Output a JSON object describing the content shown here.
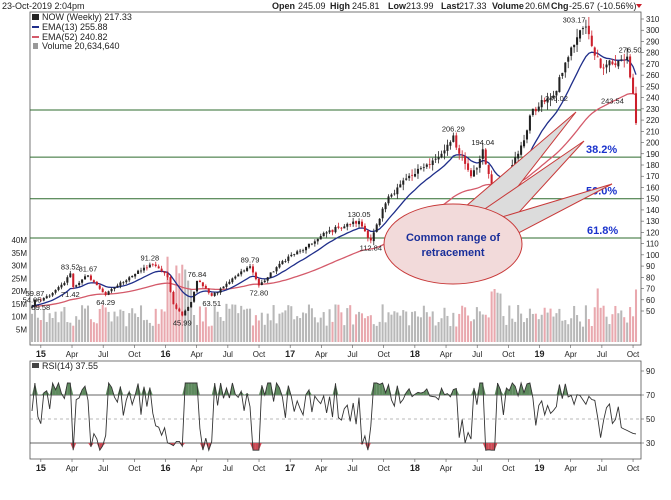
{
  "header": {
    "datetime": "23-Oct-2019 2:04pm",
    "open_label": "Open",
    "open": "245.09",
    "high_label": "High",
    "high": "245.81",
    "low_label": "Low",
    "low": "213.99",
    "last_label": "Last",
    "last": "217.33",
    "volume_label": "Volume",
    "volume": "20.6M",
    "chg_label": "Chg",
    "chg": "-25.67 (-10.56%)"
  },
  "legend": {
    "symbol": "NOW (Weekly) 217.33",
    "ema13": "EMA(13) 255.88",
    "ema52": "EMA(52) 240.82",
    "volume": "Volume 20,634,640"
  },
  "rsi_legend": "RSI(14) 37.55",
  "colors": {
    "up": "#222222",
    "down": "#cc1f2b",
    "ema13": "#1f2e8a",
    "ema52": "#d45a6a",
    "fib_line": "#2e6b2e",
    "fib_text": "#1a33cc",
    "bubble": "#f2dada",
    "bubble_border": "#c83a3a",
    "ann_text": "#1a2f9a",
    "rsi_fill": "#5e8a5e"
  },
  "annotation": {
    "line1": "Common range of",
    "line2": "retracement"
  },
  "chart_data": {
    "type": "candlestick",
    "title": "NOW (Weekly)",
    "x_labels": [
      "15",
      "Apr",
      "Jul",
      "Oct",
      "16",
      "Apr",
      "Jul",
      "Oct",
      "17",
      "Apr",
      "Jul",
      "Oct",
      "18",
      "Apr",
      "Jul",
      "Oct",
      "19",
      "Apr",
      "Jul",
      "Oct"
    ],
    "x_labels_bold": [
      "15",
      "16",
      "17",
      "18",
      "19"
    ],
    "price_ylim": [
      40,
      310
    ],
    "price_ticks": [
      310,
      300,
      290,
      280,
      270,
      260,
      250,
      240,
      230,
      220,
      210,
      200,
      190,
      180,
      170,
      160,
      150,
      140,
      130,
      120,
      110,
      100,
      90,
      80,
      70,
      60,
      50
    ],
    "volume_ylim": [
      0,
      40
    ],
    "volume_ticks": [
      "40M",
      "35M",
      "30M",
      "25M",
      "20M",
      "15M",
      "10M",
      "5M"
    ],
    "rsi_ylim": [
      20,
      95
    ],
    "rsi_ticks": [
      90,
      70,
      50,
      30
    ],
    "rsi_levels": [
      70,
      30
    ],
    "fibonacci": [
      {
        "label": "38.2%",
        "price": 187
      },
      {
        "label": "50.0%",
        "price": 150
      },
      {
        "label": "61.8%",
        "price": 115
      }
    ],
    "top_line_price": 229,
    "price_labels": [
      {
        "text": "54.05",
        "t": 0.0,
        "value": 54.05
      },
      {
        "text": "59.87",
        "t": 1.0,
        "value": 59.87
      },
      {
        "text": "59.58",
        "t": 3.0,
        "value": 59.58
      },
      {
        "text": "83.52",
        "t": 13.0,
        "value": 83.52
      },
      {
        "text": "71.42",
        "t": 13.0,
        "value": 71.42
      },
      {
        "text": "81.67",
        "t": 19.0,
        "value": 81.67
      },
      {
        "text": "64.29",
        "t": 25.0,
        "value": 64.29
      },
      {
        "text": "91.28",
        "t": 40.0,
        "value": 91.28
      },
      {
        "text": "45.99",
        "t": 51.0,
        "value": 45.99
      },
      {
        "text": "76.84",
        "t": 56.0,
        "value": 76.84
      },
      {
        "text": "63.51",
        "t": 61.0,
        "value": 63.51
      },
      {
        "text": "89.79",
        "t": 74.0,
        "value": 89.79
      },
      {
        "text": "72.80",
        "t": 77.0,
        "value": 72.8
      },
      {
        "text": "130.05",
        "t": 111.0,
        "value": 130.05
      },
      {
        "text": "112.84",
        "t": 115.0,
        "value": 112.84
      },
      {
        "text": "206.29",
        "t": 143.0,
        "value": 206.29
      },
      {
        "text": "194.04",
        "t": 153.0,
        "value": 194.04
      },
      {
        "text": "147.6",
        "t": 157.0,
        "value": 147.6
      },
      {
        "text": "246.02",
        "t": 178.0,
        "value": 246.02
      },
      {
        "text": "303.17",
        "t": 184.0,
        "value": 303.17
      },
      {
        "text": "276.50",
        "t": 203.0,
        "value": 276.5
      },
      {
        "text": "243.54",
        "t": 197.0,
        "value": 243.54
      }
    ],
    "anchors": [
      [
        0,
        54
      ],
      [
        1,
        60
      ],
      [
        3,
        59.6
      ],
      [
        7,
        66
      ],
      [
        11,
        75
      ],
      [
        13,
        83.5
      ],
      [
        14,
        71.4
      ],
      [
        17,
        78
      ],
      [
        19,
        81.7
      ],
      [
        22,
        73
      ],
      [
        25,
        64.3
      ],
      [
        28,
        71
      ],
      [
        33,
        80
      ],
      [
        37,
        86
      ],
      [
        40,
        91.3
      ],
      [
        43,
        88
      ],
      [
        46,
        80
      ],
      [
        48,
        56
      ],
      [
        51,
        46
      ],
      [
        54,
        58
      ],
      [
        56,
        76.8
      ],
      [
        59,
        70
      ],
      [
        61,
        63.5
      ],
      [
        64,
        70
      ],
      [
        68,
        79
      ],
      [
        72,
        86
      ],
      [
        74,
        89.8
      ],
      [
        77,
        72.8
      ],
      [
        80,
        80
      ],
      [
        84,
        92
      ],
      [
        88,
        100
      ],
      [
        92,
        104
      ],
      [
        96,
        112
      ],
      [
        100,
        120
      ],
      [
        104,
        124
      ],
      [
        108,
        127
      ],
      [
        111,
        130
      ],
      [
        115,
        112.8
      ],
      [
        118,
        132
      ],
      [
        121,
        152
      ],
      [
        124,
        160
      ],
      [
        127,
        168
      ],
      [
        130,
        172
      ],
      [
        133,
        178
      ],
      [
        136,
        184
      ],
      [
        139,
        190
      ],
      [
        141,
        198
      ],
      [
        143,
        206.3
      ],
      [
        145,
        190
      ],
      [
        147,
        181
      ],
      [
        149,
        170
      ],
      [
        151,
        177
      ],
      [
        153,
        194
      ],
      [
        155,
        172
      ],
      [
        157,
        147.6
      ],
      [
        159,
        158
      ],
      [
        161,
        163
      ],
      [
        163,
        180
      ],
      [
        165,
        190
      ],
      [
        167,
        202
      ],
      [
        169,
        224
      ],
      [
        172,
        232
      ],
      [
        175,
        240
      ],
      [
        178,
        246
      ],
      [
        180,
        262
      ],
      [
        182,
        276
      ],
      [
        184,
        287
      ],
      [
        186,
        300
      ],
      [
        188,
        303.2
      ],
      [
        190,
        286
      ],
      [
        192,
        276
      ],
      [
        194,
        266
      ],
      [
        196,
        273
      ],
      [
        198,
        269
      ],
      [
        200,
        274
      ],
      [
        202,
        276.5
      ],
      [
        203,
        258
      ],
      [
        204,
        243.5
      ],
      [
        205,
        217.3
      ]
    ]
  }
}
